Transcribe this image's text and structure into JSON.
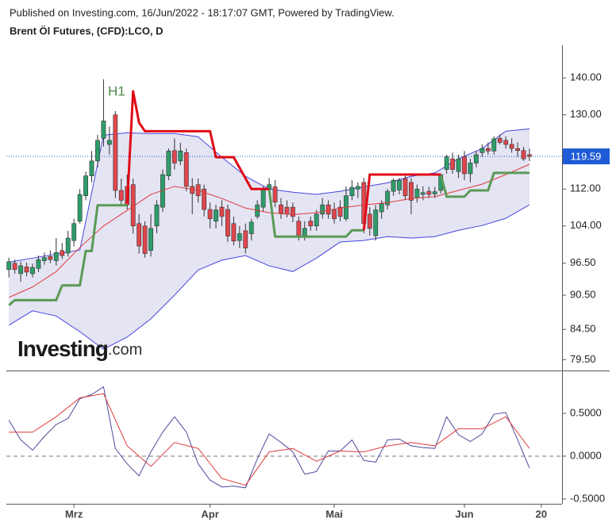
{
  "header": {
    "published": "Published on Investing.com, 16/Jun/2022 - 18:17:07 GMT, Powered by TradingView.",
    "title": "Brent Öl Futures, (CFD):LCO, D"
  },
  "logo": {
    "name": "Investing",
    "suffix": ".com"
  },
  "chart_data": [
    {
      "type": "candlestick",
      "annotation": "H1",
      "log_scale": true,
      "xlim": [
        -1.5,
        93.5
      ],
      "ylim": [
        77.8,
        149.5
      ],
      "yticks": [
        {
          "value": 140,
          "label": "140.00"
        },
        {
          "value": 130,
          "label": "130.00"
        },
        {
          "value": 112,
          "label": "112.00"
        },
        {
          "value": 104,
          "label": "104.00"
        },
        {
          "value": 96.5,
          "label": "96.50"
        },
        {
          "value": 90.5,
          "label": "90.50"
        },
        {
          "value": 84.5,
          "label": "84.50"
        },
        {
          "value": 79.5,
          "label": "79.50"
        }
      ],
      "last_price": {
        "value": 119.59,
        "label": "119.59",
        "color": "#1f5bd6"
      },
      "up_color": "#2e9d6a",
      "down_color": "#e0464c",
      "candles": [
        [
          95.3,
          97.6,
          93.8,
          96.8
        ],
        [
          96.5,
          97.2,
          94.5,
          95.3
        ],
        [
          94.5,
          96.8,
          93.0,
          96.0
        ],
        [
          95.8,
          96.6,
          94.0,
          94.8
        ],
        [
          94.5,
          96.4,
          93.8,
          95.7
        ],
        [
          95.5,
          98.0,
          94.8,
          97.2
        ],
        [
          97.0,
          98.6,
          96.2,
          97.6
        ],
        [
          97.8,
          99.0,
          96.5,
          97.2
        ],
        [
          97.0,
          101.5,
          96.0,
          98.6
        ],
        [
          99.0,
          100.5,
          97.3,
          98.0
        ],
        [
          98.5,
          103.0,
          97.8,
          101.5
        ],
        [
          101.0,
          105.5,
          99.8,
          104.5
        ],
        [
          105.0,
          112.0,
          104.5,
          110.8
        ],
        [
          110.5,
          116.0,
          109.5,
          115.0
        ],
        [
          115.0,
          120.9,
          113.5,
          118.5
        ],
        [
          118.5,
          124.9,
          117.0,
          123.5
        ],
        [
          124.0,
          139.6,
          122.0,
          128.4
        ],
        [
          122.5,
          127.0,
          120.0,
          123.5
        ],
        [
          130.0,
          131.0,
          110.0,
          111.7
        ],
        [
          111.7,
          114.4,
          108.2,
          109.5
        ],
        [
          112.6,
          115.3,
          107.5,
          108.5
        ],
        [
          113.0,
          114.4,
          102.4,
          104.0
        ],
        [
          104.5,
          106.5,
          98.4,
          99.9
        ],
        [
          104.0,
          105.0,
          97.6,
          98.4
        ],
        [
          99.0,
          106.5,
          97.8,
          103.5
        ],
        [
          104.0,
          109.5,
          102.5,
          108.5
        ],
        [
          108.0,
          116.5,
          107.0,
          115.3
        ],
        [
          115.0,
          121.5,
          114.0,
          120.9
        ],
        [
          121.0,
          124.0,
          116.5,
          118.0
        ],
        [
          118.5,
          122.9,
          117.5,
          120.9
        ],
        [
          120.5,
          121.5,
          111.5,
          112.6
        ],
        [
          112.6,
          114.5,
          106.5,
          111.0
        ],
        [
          113.0,
          114.4,
          109.0,
          110.5
        ],
        [
          112.0,
          113.0,
          106.0,
          107.5
        ],
        [
          107.5,
          109.0,
          103.5,
          105.5
        ],
        [
          105.0,
          108.5,
          103.5,
          107.4
        ],
        [
          108.0,
          109.5,
          104.0,
          106.0
        ],
        [
          107.5,
          108.5,
          100.7,
          101.9
        ],
        [
          104.5,
          106.0,
          100.0,
          100.9
        ],
        [
          101.0,
          104.0,
          99.5,
          102.4
        ],
        [
          103.0,
          104.5,
          98.4,
          99.5
        ],
        [
          102.4,
          105.5,
          101.0,
          104.8
        ],
        [
          106.0,
          109.5,
          105.5,
          108.5
        ],
        [
          108.0,
          112.6,
          107.0,
          112.0
        ],
        [
          112.0,
          114.5,
          110.5,
          113.0
        ],
        [
          112.5,
          114.0,
          108.0,
          109.1
        ],
        [
          108.5,
          110.0,
          105.5,
          106.7
        ],
        [
          108.0,
          109.5,
          105.8,
          106.5
        ],
        [
          108.0,
          109.0,
          104.8,
          106.0
        ],
        [
          105.0,
          106.0,
          101.0,
          102.0
        ],
        [
          102.0,
          105.0,
          101.0,
          103.5
        ],
        [
          105.0,
          106.0,
          103.0,
          104.0
        ],
        [
          104.0,
          107.4,
          103.0,
          106.5
        ],
        [
          106.5,
          110.0,
          105.5,
          108.5
        ],
        [
          108.5,
          109.5,
          105.5,
          106.5
        ],
        [
          107.4,
          109.0,
          104.5,
          105.5
        ],
        [
          108.0,
          109.5,
          105.0,
          106.0
        ],
        [
          105.5,
          112.6,
          105.0,
          110.5
        ],
        [
          110.5,
          114.0,
          109.5,
          112.4
        ],
        [
          112.0,
          113.5,
          110.0,
          112.6
        ],
        [
          113.5,
          114.5,
          102.5,
          104.5
        ],
        [
          106.5,
          108.0,
          102.0,
          103.5
        ],
        [
          102.0,
          108.5,
          101.0,
          107.4
        ],
        [
          107.0,
          109.5,
          105.5,
          108.8
        ],
        [
          108.5,
          112.0,
          107.5,
          111.5
        ],
        [
          111.5,
          114.4,
          110.5,
          114.0
        ],
        [
          111.8,
          114.5,
          110.8,
          114.0
        ],
        [
          114.4,
          115.5,
          109.5,
          110.5
        ],
        [
          113.5,
          114.5,
          106.5,
          109.5
        ],
        [
          110.0,
          113.0,
          109.0,
          112.0
        ],
        [
          110.8,
          112.6,
          109.5,
          111.2
        ],
        [
          111.5,
          112.5,
          110.0,
          110.8
        ],
        [
          110.9,
          112.5,
          110.0,
          111.4
        ],
        [
          111.7,
          115.5,
          111.0,
          115.3
        ],
        [
          116.5,
          120.0,
          115.5,
          119.5
        ],
        [
          119.0,
          120.5,
          115.5,
          116.5
        ],
        [
          116.0,
          120.0,
          114.5,
          119.0
        ],
        [
          119.5,
          120.9,
          114.0,
          115.5
        ],
        [
          115.5,
          119.0,
          113.5,
          118.0
        ],
        [
          118.0,
          120.9,
          117.0,
          120.0
        ],
        [
          120.5,
          122.5,
          119.5,
          121.5
        ],
        [
          121.5,
          123.0,
          120.0,
          120.9
        ],
        [
          120.9,
          124.5,
          120.0,
          123.9
        ],
        [
          124.0,
          125.0,
          122.5,
          123.0
        ],
        [
          123.5,
          124.5,
          121.5,
          122.5
        ],
        [
          122.5,
          124.0,
          120.5,
          121.5
        ],
        [
          121.5,
          123.0,
          119.5,
          121.0
        ],
        [
          121.0,
          121.9,
          118.5,
          119.0
        ],
        [
          120.0,
          121.5,
          118.5,
          119.6
        ]
      ],
      "band": {
        "color": "#4545e0",
        "fill": "#e4e4f3",
        "x": [
          0,
          4,
          8,
          12,
          16,
          20,
          24,
          28,
          32,
          36,
          40,
          44,
          48,
          52,
          56,
          60,
          64,
          68,
          72,
          76,
          80,
          84,
          88
        ],
        "upper": [
          96.7,
          97.5,
          98.3,
          99.1,
          124.8,
          125.4,
          125.2,
          125.2,
          124.4,
          119.4,
          114.9,
          112.0,
          111.3,
          110.8,
          111.5,
          112.5,
          113.4,
          114.9,
          115.7,
          119.0,
          121.5,
          125.8,
          126.4
        ],
        "lower": [
          85.2,
          87.7,
          86.8,
          84.1,
          81.2,
          83.2,
          86.3,
          90.5,
          95.2,
          97.1,
          98.0,
          96.0,
          94.9,
          97.5,
          100.7,
          101.0,
          101.8,
          101.5,
          101.8,
          103.1,
          104.1,
          105.6,
          108.5
        ]
      },
      "series": [
        {
          "color": "#e03a3a",
          "style": "thin",
          "x": [
            0,
            4,
            8,
            12,
            16,
            20,
            24,
            28,
            32,
            36,
            40,
            44,
            48,
            52,
            56,
            60,
            64,
            68,
            72,
            76,
            80,
            84,
            88
          ],
          "values": [
            90.1,
            92.0,
            94.9,
            99.6,
            104.0,
            107.3,
            110.8,
            112.6,
            111.7,
            109.9,
            107.8,
            106.8,
            106.4,
            106.8,
            107.8,
            108.5,
            109.0,
            109.9,
            110.3,
            111.7,
            113.1,
            115.3,
            117.7
          ]
        },
        {
          "color": "#5a9a55",
          "style": "thick",
          "x": [
            0,
            1,
            8,
            9,
            12,
            13,
            14,
            15,
            20,
            30,
            44,
            45,
            57,
            58,
            60,
            66,
            73,
            74,
            77,
            78,
            81,
            82,
            88
          ],
          "values": [
            88.7,
            89.6,
            89.6,
            92.3,
            92.3,
            98.9,
            98.9,
            108.4,
            108.4,
            null,
            112.0,
            101.8,
            101.8,
            103.1,
            103.1,
            null,
            115.3,
            110.3,
            110.3,
            111.7,
            111.7,
            115.7,
            115.7
          ]
        },
        {
          "color": "#e00b16",
          "style": "thick",
          "x": [
            20,
            21,
            22,
            23,
            34,
            35,
            38,
            41,
            44,
            52,
            60,
            61,
            73
          ],
          "values": [
            108.8,
            136.3,
            128.0,
            125.8,
            125.8,
            119.4,
            119.4,
            112.0,
            112.0,
            null,
            103.1,
            115.3,
            115.3
          ]
        }
      ]
    },
    {
      "type": "line",
      "xlim": [
        -1.5,
        93.5
      ],
      "ylim": [
        -0.556,
        1.0
      ],
      "yticks": [
        {
          "value": 0.5,
          "label": "0.5000"
        },
        {
          "value": 0,
          "label": "0.0000"
        },
        {
          "value": -0.5,
          "label": "-0.5000"
        }
      ],
      "reference_line": 0,
      "xticks": [
        {
          "value": 11,
          "label": "Mrz"
        },
        {
          "value": 34,
          "label": "Apr"
        },
        {
          "value": 55,
          "label": "Mai"
        },
        {
          "value": 77,
          "label": "Jun"
        },
        {
          "value": 90,
          "label": "20"
        }
      ],
      "series": [
        {
          "color": "#4b4b9c",
          "style": "thin",
          "x": [
            0,
            2,
            4,
            6,
            8,
            10,
            12,
            14,
            16,
            18,
            20,
            22,
            24,
            26,
            28,
            30,
            32,
            34,
            36,
            38,
            40,
            42,
            44,
            46,
            48,
            50,
            52,
            54,
            56,
            58,
            60,
            62,
            64,
            66,
            68,
            70,
            72,
            74,
            76,
            78,
            80,
            82,
            84,
            86,
            88
          ],
          "values": [
            0.42,
            0.19,
            0.07,
            0.23,
            0.37,
            0.44,
            0.67,
            0.72,
            0.81,
            0.09,
            -0.09,
            -0.23,
            0.05,
            0.28,
            0.46,
            0.28,
            -0.09,
            -0.28,
            -0.36,
            -0.35,
            -0.37,
            -0.03,
            0.26,
            0.16,
            0.05,
            -0.21,
            -0.18,
            0.06,
            0.06,
            0.19,
            -0.05,
            -0.07,
            0.19,
            0.2,
            0.12,
            0.1,
            0.09,
            0.46,
            0.25,
            0.17,
            0.26,
            0.49,
            0.51,
            0.19,
            -0.14
          ]
        },
        {
          "color": "#e03a3a",
          "style": "thin",
          "x": [
            0,
            4,
            8,
            12,
            16,
            20,
            24,
            28,
            32,
            36,
            40,
            44,
            48,
            52,
            56,
            60,
            64,
            68,
            72,
            76,
            80,
            84,
            88
          ],
          "values": [
            0.28,
            0.28,
            0.46,
            0.68,
            0.73,
            0.12,
            -0.12,
            0.16,
            0.09,
            -0.26,
            -0.34,
            0.05,
            0.09,
            -0.06,
            0.06,
            0.05,
            0.12,
            0.16,
            0.12,
            0.32,
            0.32,
            0.46,
            0.09
          ]
        }
      ]
    }
  ]
}
